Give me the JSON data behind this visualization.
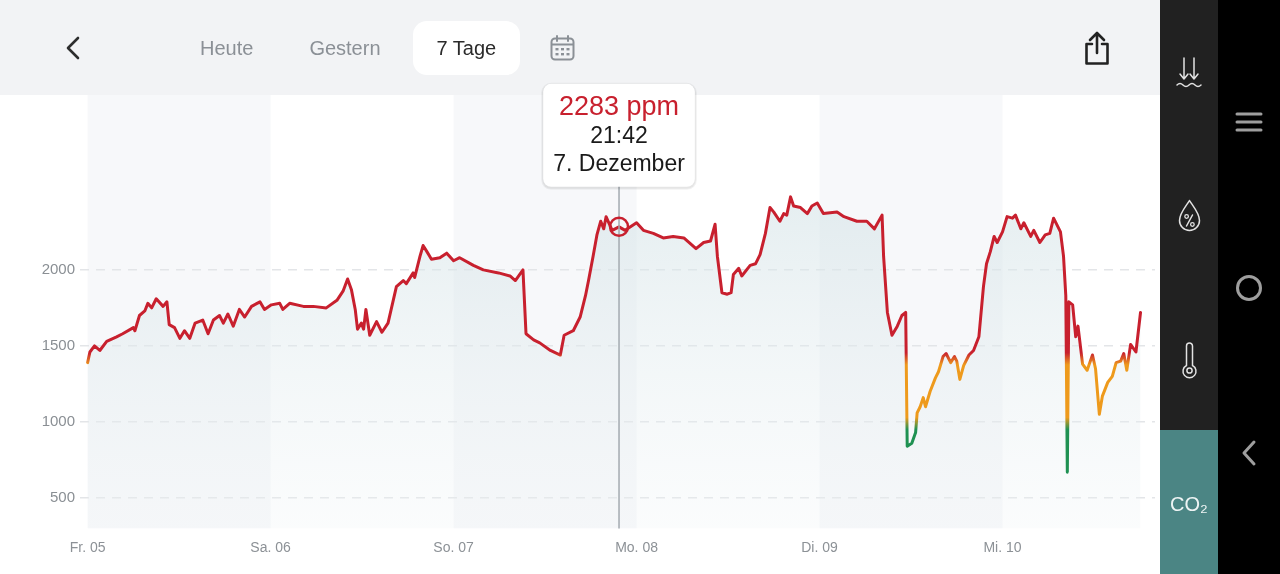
{
  "chart_data": {
    "type": "area",
    "color": "#c8202e",
    "x": [
      "--12-05T00:00",
      "--12-05T00:18",
      "--12-05T00:54",
      "--12-05T01:36",
      "--12-05T02:30",
      "--12-05T03:48",
      "--12-05T04:36",
      "--12-05T06:00",
      "--12-05T06:12",
      "--12-05T06:48",
      "--12-05T07:30",
      "--12-05T07:54",
      "--12-05T08:24",
      "--12-05T09:00",
      "--12-05T09:54",
      "--12-05T10:24",
      "--12-05T10:42",
      "--12-05T11:24",
      "--12-05T12:06",
      "--12-05T12:42",
      "--12-05T13:24",
      "--12-05T14:06",
      "--12-05T15:06",
      "--12-05T15:48",
      "--12-05T16:30",
      "--12-05T17:18",
      "--12-05T17:48",
      "--12-05T18:24",
      "--12-05T19:06",
      "--12-05T19:54",
      "--12-05T20:36",
      "--12-05T21:30",
      "--12-05T22:36",
      "--12-05T23:12",
      "--12-06T00:06",
      "--12-06T01:12",
      "--12-06T01:36",
      "--12-06T02:30",
      "--12-06T04:18",
      "--12-06T05:36",
      "--12-06T07:18",
      "--12-06T08:42",
      "--12-06T09:30",
      "--12-06T10:06",
      "--12-06T10:36",
      "--12-06T11:06",
      "--12-06T11:24",
      "--12-06T11:54",
      "--12-06T12:12",
      "--12-06T12:30",
      "--12-06T13:00",
      "--12-06T13:54",
      "--12-06T14:36",
      "--12-06T15:24",
      "--12-06T16:30",
      "--12-06T17:24",
      "--12-06T17:48",
      "--12-06T18:42",
      "--12-06T18:54",
      "--12-06T19:36",
      "--12-06T20:00",
      "--12-06T20:30",
      "--12-06T21:06",
      "--12-06T22:12",
      "--12-06T23:06",
      "--12-07T00:00",
      "--12-07T00:48",
      "--12-07T02:36",
      "--12-07T03:54",
      "--12-07T05:54",
      "--12-07T07:24",
      "--12-07T08:06",
      "--12-07T09:06",
      "--12-07T09:30",
      "--12-07T10:30",
      "--12-07T11:18",
      "--12-07T12:42",
      "--12-07T14:00",
      "--12-07T14:30",
      "--12-07T15:42",
      "--12-07T16:36",
      "--12-07T17:18",
      "--12-07T17:42",
      "--12-07T18:18",
      "--12-07T18:48",
      "--12-07T19:18",
      "--12-07T19:42",
      "--12-07T20:00",
      "--12-07T20:48",
      "--12-07T21:42",
      "--12-07T22:30",
      "--12-07T23:24",
      "--12-08T00:00",
      "--12-08T00:54",
      "--12-08T02:12",
      "--12-08T03:30",
      "--12-08T04:48",
      "--12-08T06:12",
      "--12-08T07:48",
      "--12-08T08:48",
      "--12-08T09:42",
      "--12-08T10:18",
      "--12-08T10:36",
      "--12-08T11:12",
      "--12-08T11:54",
      "--12-08T12:24",
      "--12-08T12:42",
      "--12-08T13:24",
      "--12-08T13:48",
      "--12-08T14:54",
      "--12-08T15:36",
      "--12-08T16:12",
      "--12-08T16:54",
      "--12-08T17:30",
      "--12-08T18:00",
      "--12-08T18:48",
      "--12-08T19:18",
      "--12-08T19:42",
      "--12-08T20:12",
      "--12-08T20:36",
      "--12-08T21:30",
      "--12-08T22:24",
      "--12-08T23:00",
      "--12-08T23:42",
      "--12-09T00:30",
      "--12-09T02:18",
      "--12-09T03:12",
      "--12-09T04:54",
      "--12-09T06:12",
      "--12-09T07:12",
      "--12-09T08:12",
      "--12-09T08:24",
      "--12-09T08:54",
      "--12-09T09:30",
      "--12-09T10:12",
      "--12-09T10:48",
      "--12-09T11:18",
      "--12-09T11:30",
      "--12-09T12:06",
      "--12-09T12:36",
      "--12-09T12:48",
      "--12-09T13:12",
      "--12-09T13:36",
      "--12-09T13:54",
      "--12-09T14:30",
      "--12-09T15:12",
      "--12-09T15:36",
      "--12-09T16:12",
      "--12-09T16:36",
      "--12-09T17:12",
      "--12-09T17:42",
      "--12-09T18:00",
      "--12-09T18:24",
      "--12-09T18:54",
      "--12-09T19:36",
      "--12-09T20:12",
      "--12-09T20:54",
      "--12-09T21:30",
      "--12-09T21:54",
      "--12-09T22:24",
      "--12-09T22:54",
      "--12-09T23:18",
      "--12-10T00:00",
      "--12-10T00:36",
      "--12-10T01:18",
      "--12-10T01:42",
      "--12-10T02:24",
      "--12-10T02:48",
      "--12-10T03:42",
      "--12-10T04:06",
      "--12-10T04:54",
      "--12-10T05:36",
      "--12-10T06:12",
      "--12-10T06:42",
      "--12-10T07:36",
      "--12-10T08:00",
      "--12-10T08:18",
      "--12-10T08:30",
      "--12-10T08:42",
      "--12-10T09:12",
      "--12-10T09:36",
      "--12-10T09:54",
      "--12-10T10:30",
      "--12-10T11:06",
      "--12-10T11:48",
      "--12-10T12:12",
      "--12-10T12:42",
      "--12-10T13:06",
      "--12-10T13:48",
      "--12-10T14:24",
      "--12-10T14:54",
      "--12-10T15:30",
      "--12-10T15:54",
      "--12-10T16:18",
      "--12-10T16:48",
      "--12-10T17:30",
      "--12-10T18:06"
    ],
    "values": [
      1390,
      1460,
      1500,
      1470,
      1530,
      1560,
      1580,
      1620,
      1600,
      1700,
      1730,
      1780,
      1750,
      1810,
      1760,
      1790,
      1640,
      1620,
      1550,
      1600,
      1550,
      1650,
      1670,
      1580,
      1670,
      1700,
      1650,
      1710,
      1630,
      1740,
      1690,
      1760,
      1790,
      1740,
      1770,
      1780,
      1740,
      1780,
      1760,
      1760,
      1750,
      1800,
      1860,
      1940,
      1870,
      1740,
      1610,
      1650,
      1610,
      1740,
      1570,
      1660,
      1590,
      1650,
      1890,
      1930,
      1910,
      1980,
      1950,
      2090,
      2160,
      2120,
      2070,
      2080,
      2110,
      2060,
      2080,
      2030,
      2000,
      1980,
      1960,
      1930,
      2000,
      1580,
      1540,
      1520,
      1470,
      1440,
      1570,
      1600,
      1690,
      1830,
      1930,
      2090,
      2230,
      2320,
      2270,
      2350,
      2260,
      2283,
      2260,
      2290,
      2310,
      2260,
      2240,
      2210,
      2220,
      2210,
      2140,
      2180,
      2190,
      2300,
      2090,
      1850,
      1840,
      1850,
      1970,
      2010,
      1960,
      2030,
      2040,
      2100,
      2240,
      2410,
      2380,
      2320,
      2370,
      2360,
      2480,
      2420,
      2410,
      2370,
      2420,
      2440,
      2370,
      2380,
      2350,
      2320,
      2320,
      2270,
      2360,
      2090,
      1720,
      1570,
      1630,
      1700,
      1720,
      840,
      860,
      930,
      1060,
      1100,
      1160,
      1100,
      1200,
      1290,
      1330,
      1430,
      1450,
      1390,
      1430,
      1400,
      1280,
      1370,
      1440,
      1470,
      1560,
      1890,
      2040,
      2120,
      2220,
      2180,
      2250,
      2350,
      2340,
      2360,
      2270,
      2310,
      2220,
      2260,
      2180,
      2230,
      2240,
      2340,
      2250,
      2090,
      1830,
      670,
      1790,
      1770,
      1560,
      1630,
      1380,
      1340,
      1440,
      1350,
      1050,
      1170,
      1260,
      1300,
      1390,
      1400,
      1450,
      1340,
      1510,
      1460,
      1720
    ],
    "colors": [
      "#ee9a1c",
      "#c8202e",
      "#c8202e",
      "#c8202e",
      "#c8202e",
      "#c8202e",
      "#c8202e",
      "#c8202e",
      "#c8202e",
      "#c8202e",
      "#c8202e",
      "#c8202e",
      "#c8202e",
      "#c8202e",
      "#c8202e",
      "#c8202e",
      "#c8202e",
      "#c8202e",
      "#c8202e",
      "#c8202e",
      "#c8202e",
      "#c8202e",
      "#c8202e",
      "#c8202e",
      "#c8202e",
      "#c8202e",
      "#c8202e",
      "#c8202e",
      "#c8202e",
      "#c8202e",
      "#c8202e",
      "#c8202e",
      "#c8202e",
      "#c8202e",
      "#c8202e",
      "#c8202e",
      "#c8202e",
      "#c8202e",
      "#c8202e",
      "#c8202e",
      "#c8202e",
      "#c8202e",
      "#c8202e",
      "#c8202e",
      "#c8202e",
      "#c8202e",
      "#c8202e",
      "#c8202e",
      "#c8202e",
      "#c8202e",
      "#c8202e",
      "#c8202e",
      "#c8202e",
      "#c8202e",
      "#c8202e",
      "#c8202e",
      "#c8202e",
      "#c8202e",
      "#c8202e",
      "#c8202e",
      "#c8202e",
      "#c8202e",
      "#c8202e",
      "#c8202e",
      "#c8202e",
      "#c8202e",
      "#c8202e",
      "#c8202e",
      "#c8202e",
      "#c8202e",
      "#c8202e",
      "#c8202e",
      "#c8202e",
      "#c8202e",
      "#c8202e",
      "#c8202e",
      "#c8202e",
      "#c8202e",
      "#c8202e",
      "#c8202e",
      "#c8202e",
      "#c8202e",
      "#c8202e",
      "#c8202e",
      "#c8202e",
      "#c8202e",
      "#c8202e",
      "#c8202e",
      "#c8202e",
      "#c8202e",
      "#c8202e",
      "#c8202e",
      "#c8202e",
      "#c8202e",
      "#c8202e",
      "#c8202e",
      "#c8202e",
      "#c8202e",
      "#c8202e",
      "#c8202e",
      "#c8202e",
      "#c8202e",
      "#c8202e",
      "#c8202e",
      "#c8202e",
      "#c8202e",
      "#c8202e",
      "#c8202e",
      "#c8202e",
      "#c8202e",
      "#c8202e",
      "#c8202e",
      "#c8202e",
      "#c8202e",
      "#c8202e",
      "#c8202e",
      "#c8202e",
      "#c8202e",
      "#c8202e",
      "#c8202e",
      "#c8202e",
      "#c8202e",
      "#c8202e",
      "#c8202e",
      "#c8202e",
      "#c8202e",
      "#c8202e",
      "#c8202e",
      "#c8202e",
      "#c8202e",
      "#c8202e",
      "#c8202e",
      "#c8202e",
      "#c8202e",
      "#c8202e",
      "#c8202e",
      "#c8202e",
      "#1f9152",
      "#1f9152",
      "#1f9152",
      "#ee9a1c",
      "#ee9a1c",
      "#ee9a1c",
      "#ee9a1c",
      "#ee9a1c",
      "#ee9a1c",
      "#ee9a1c",
      "#c8202e",
      "#c8202e",
      "#ee9a1c",
      "#c8202e",
      "#ee9a1c",
      "#ee9a1c",
      "#ee9a1c",
      "#c8202e",
      "#c8202e",
      "#c8202e",
      "#c8202e",
      "#c8202e",
      "#c8202e",
      "#c8202e",
      "#c8202e",
      "#c8202e",
      "#c8202e",
      "#c8202e",
      "#c8202e",
      "#c8202e",
      "#c8202e",
      "#c8202e",
      "#c8202e",
      "#c8202e",
      "#c8202e",
      "#c8202e",
      "#c8202e",
      "#c8202e",
      "#c8202e",
      "#c8202e",
      "#1f9152",
      "#c8202e",
      "#c8202e",
      "#c8202e",
      "#c8202e",
      "#ee9a1c",
      "#ee9a1c",
      "#c8202e",
      "#ee9a1c",
      "#ee9a1c",
      "#ee9a1c",
      "#ee9a1c",
      "#ee9a1c",
      "#ee9a1c",
      "#ee9a1c",
      "#c8202e",
      "#ee9a1c",
      "#c8202e",
      "#c8202e",
      "#c8202e"
    ],
    "xlim": [
      "--12-04T23:00",
      "--12-10T20:00"
    ],
    "xticks": [
      {
        "value": "--12-05",
        "label": "Fr. 05"
      },
      {
        "value": "--12-06",
        "label": "Sa. 06"
      },
      {
        "value": "--12-07",
        "label": "So. 07"
      },
      {
        "value": "--12-08",
        "label": "Mo. 08"
      },
      {
        "value": "--12-09",
        "label": "Di. 09"
      },
      {
        "value": "--12-10",
        "label": "Mi. 10"
      }
    ],
    "ylim": [
      300,
      3150
    ],
    "yticks": [
      500,
      1000,
      1500,
      2000
    ],
    "grid": "y",
    "bands": [
      {
        "axis": "x",
        "from": "--12-05",
        "to": "--12-06",
        "color": "#f7f8fa"
      },
      {
        "axis": "x",
        "from": "--12-07",
        "to": "--12-08",
        "color": "#f7f8fa"
      },
      {
        "axis": "x",
        "from": "--12-09",
        "to": "--12-10",
        "color": "#f7f8fa"
      }
    ],
    "ref_lines": [
      {
        "axis": "x",
        "value": "--12-07T21:42",
        "color": "#a3aab0"
      }
    ],
    "annotations": [
      "Heute",
      "Gestern",
      "7 Tage",
      "CO₂",
      {
        "text": "2283 ppm\n21:42\n7. Dezember",
        "x": "--12-07T21:42",
        "y": 2283
      }
    ]
  }
}
